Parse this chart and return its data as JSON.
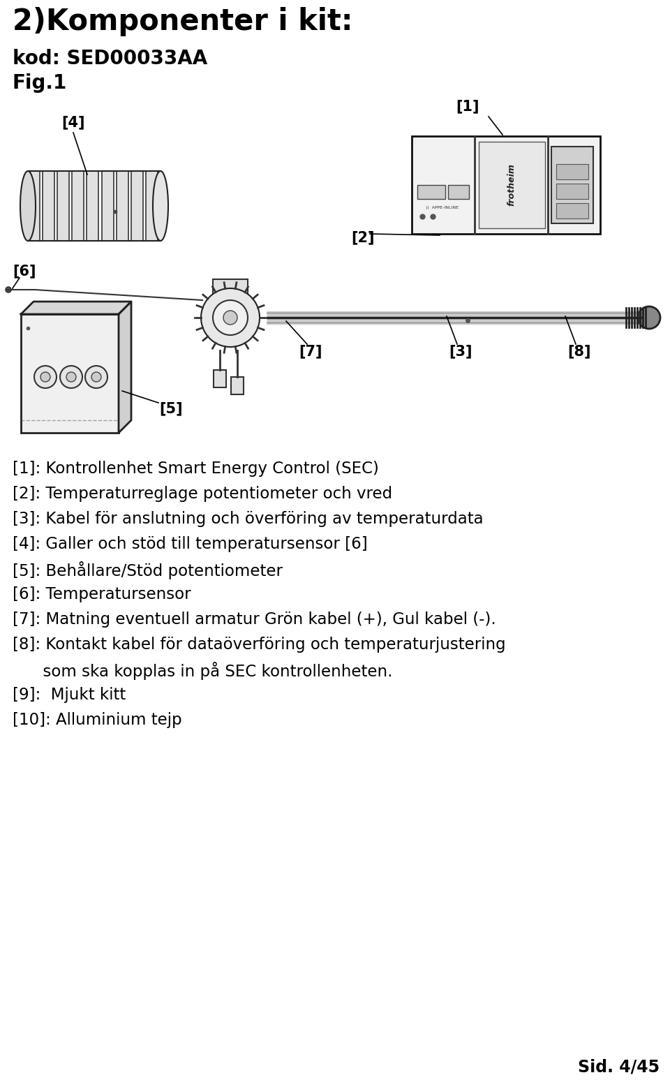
{
  "title_line1": "2)Komponenter i kit:",
  "title_line2": "kod: SED00033AA",
  "title_line3": "Fig.1",
  "descriptions": [
    "[1]: Kontrollenhet Smart Energy Control (SEC)",
    "[2]: Temperaturreglage potentiometer och vred",
    "[3]: Kabel för anslutning och överföring av temperaturdata",
    "[4]: Galler och stöd till temperatursensor [6]",
    "[5]: Behållare/Stöd potentiometer",
    "[6]: Temperatursensor",
    "[7]: Matning eventuell armatur Grön kabel (+), Gul kabel (-).",
    "[8]: Kontakt kabel för dataöverföring och temperaturjustering",
    "      som ska kopplas in på SEC kontrollenheten.",
    "[9]:  Mjukt kitt",
    "[10]: Alluminium tejp"
  ],
  "footer": "Sid. 4/45",
  "bg_color": "#ffffff",
  "text_color": "#000000",
  "title1_fontsize": 30,
  "title2_fontsize": 20,
  "body_fontsize": 16.5,
  "footer_fontsize": 17
}
